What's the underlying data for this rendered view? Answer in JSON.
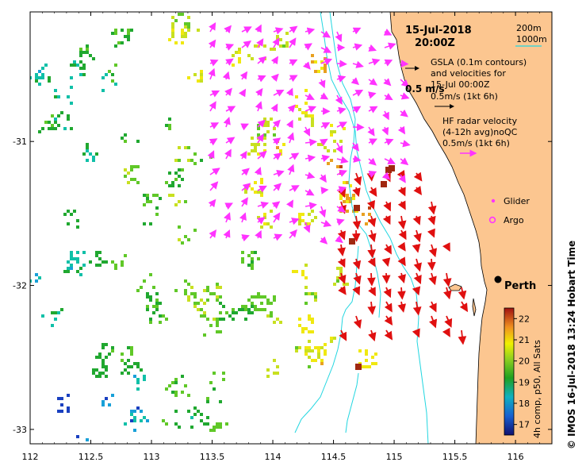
{
  "title": {
    "date": "15-Jul-2018",
    "time": "20:00Z"
  },
  "scale_legend": {
    "depth1": "200m",
    "depth2": "1000m"
  },
  "gsla_legend": {
    "line1": "GSLA (0.1m contours)",
    "line2": "and velocities for",
    "line3": "15-Jul 00:00Z",
    "line4": "0.5m/s (1kt 6h)",
    "scale_label": "0.5 m/s"
  },
  "hf_legend": {
    "line1": "HF radar velocity",
    "line2": "(4-12h avg)noQC",
    "line3": "0.5m/s (1kt 6h)"
  },
  "glider_label": "Glider",
  "argo_label": "Argo",
  "city": {
    "name": "Perth"
  },
  "colorbar": {
    "ticks": [
      "22",
      "21",
      "20",
      "19",
      "18",
      "17"
    ],
    "min": 16.5,
    "max": 22.5,
    "label": "4h comp, p50, All Sats"
  },
  "side_credit": "© IMOS 16-Jul-2018 13:24 Hobart Time",
  "x_axis": {
    "ticks": [
      "112",
      "112.5",
      "113",
      "113.5",
      "114",
      "114.5",
      "115",
      "115.5",
      "116"
    ],
    "min": 112,
    "max": 116.3
  },
  "y_axis": {
    "ticks": [
      "-31",
      "-32",
      "-33"
    ],
    "min": -33.1,
    "max": -30.1
  },
  "colors": {
    "land": "#fcc690",
    "coast_contour": "#22d6e0",
    "hf_vector": "#e01010",
    "gsla_vector": "#ff33ff",
    "glider": "#ff33ff"
  }
}
